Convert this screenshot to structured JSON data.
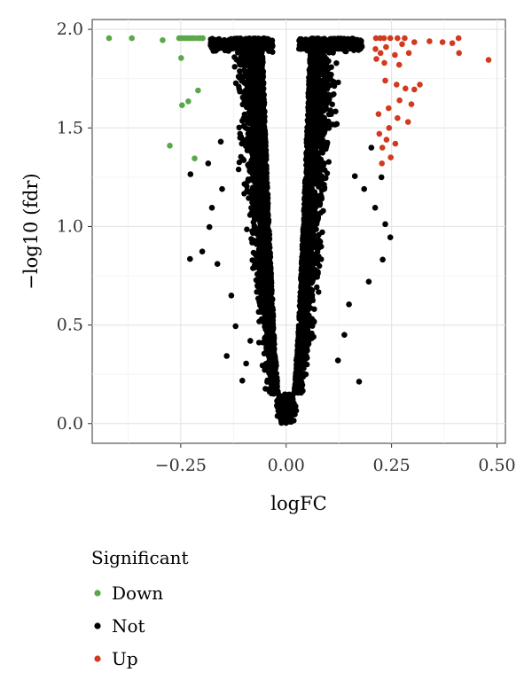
{
  "chart_data": {
    "type": "scatter",
    "title": "",
    "xlabel": "logFC",
    "ylabel": "−log10 (fdr)",
    "xlim": [
      -0.46,
      0.52
    ],
    "ylim": [
      -0.1,
      2.05
    ],
    "x_ticks": [
      -0.25,
      0.0,
      0.25,
      0.5
    ],
    "x_tick_labels": [
      "−0.25",
      "0.00",
      "0.25",
      "0.50"
    ],
    "y_ticks": [
      0.0,
      0.5,
      1.0,
      1.5,
      2.0
    ],
    "y_tick_labels": [
      "0.0",
      "0.5",
      "1.0",
      "1.5",
      "2.0"
    ],
    "grid": true,
    "legend": {
      "title": "Significant",
      "placement": "bottom",
      "entries": [
        {
          "name": "Down",
          "color": "#5aa84a"
        },
        {
          "name": "Not",
          "color": "#000000"
        },
        {
          "name": "Up",
          "color": "#d23a1f"
        }
      ]
    },
    "series": [
      {
        "name": "Down",
        "color": "#5aa84a",
        "points": [
          [
            -0.42,
            1.955
          ],
          [
            -0.366,
            1.955
          ],
          [
            -0.293,
            1.945
          ],
          [
            -0.254,
            1.955
          ],
          [
            -0.247,
            1.955
          ],
          [
            -0.24,
            1.955
          ],
          [
            -0.234,
            1.955
          ],
          [
            -0.227,
            1.955
          ],
          [
            -0.22,
            1.955
          ],
          [
            -0.212,
            1.955
          ],
          [
            -0.205,
            1.955
          ],
          [
            -0.198,
            1.955
          ],
          [
            -0.249,
            1.855
          ],
          [
            -0.232,
            1.635
          ],
          [
            -0.209,
            1.69
          ],
          [
            -0.247,
            1.615
          ],
          [
            -0.276,
            1.41
          ],
          [
            -0.217,
            1.345
          ]
        ]
      },
      {
        "name": "Not",
        "color": "#000000",
        "points": [
          [
            -0.227,
            1.265
          ],
          [
            -0.228,
            0.835
          ],
          [
            -0.185,
            1.32
          ],
          [
            -0.199,
            0.873
          ],
          [
            -0.182,
            0.997
          ],
          [
            -0.163,
            0.81
          ],
          [
            -0.141,
            0.343
          ],
          [
            -0.104,
            0.218
          ],
          [
            -0.12,
            0.494
          ],
          [
            -0.095,
            0.305
          ],
          [
            -0.176,
            1.095
          ],
          [
            -0.152,
            1.19
          ],
          [
            -0.13,
            0.65
          ],
          [
            -0.085,
            0.42
          ],
          [
            0.173,
            0.213
          ],
          [
            0.149,
            0.605
          ],
          [
            0.185,
            1.19
          ],
          [
            0.226,
            1.25
          ],
          [
            0.235,
            1.012
          ],
          [
            0.229,
            0.832
          ],
          [
            0.211,
            1.095
          ],
          [
            0.247,
            0.945
          ],
          [
            0.196,
            0.72
          ],
          [
            0.123,
            0.32
          ],
          [
            0.163,
            1.255
          ],
          [
            0.138,
            0.45
          ],
          [
            -0.105,
            1.42
          ],
          [
            -0.062,
            1.62
          ],
          [
            -0.155,
            1.43
          ],
          [
            0.09,
            1.32
          ],
          [
            0.12,
            1.52
          ],
          [
            0.202,
            1.4
          ]
        ]
      },
      {
        "name": "Up",
        "color": "#d23a1f",
        "points": [
          [
            0.213,
            1.955
          ],
          [
            0.223,
            1.955
          ],
          [
            0.232,
            1.955
          ],
          [
            0.247,
            1.955
          ],
          [
            0.264,
            1.955
          ],
          [
            0.281,
            1.955
          ],
          [
            0.304,
            1.935
          ],
          [
            0.34,
            1.94
          ],
          [
            0.371,
            1.935
          ],
          [
            0.394,
            1.93
          ],
          [
            0.409,
            1.955
          ],
          [
            0.212,
            1.9
          ],
          [
            0.224,
            1.88
          ],
          [
            0.237,
            1.91
          ],
          [
            0.258,
            1.87
          ],
          [
            0.275,
            1.925
          ],
          [
            0.291,
            1.88
          ],
          [
            0.214,
            1.85
          ],
          [
            0.233,
            1.83
          ],
          [
            0.268,
            1.82
          ],
          [
            0.41,
            1.88
          ],
          [
            0.48,
            1.845
          ],
          [
            0.235,
            1.74
          ],
          [
            0.262,
            1.72
          ],
          [
            0.283,
            1.7
          ],
          [
            0.304,
            1.695
          ],
          [
            0.317,
            1.72
          ],
          [
            0.219,
            1.57
          ],
          [
            0.243,
            1.6
          ],
          [
            0.269,
            1.64
          ],
          [
            0.297,
            1.62
          ],
          [
            0.221,
            1.47
          ],
          [
            0.244,
            1.5
          ],
          [
            0.264,
            1.55
          ],
          [
            0.289,
            1.53
          ],
          [
            0.228,
            1.4
          ],
          [
            0.238,
            1.44
          ],
          [
            0.259,
            1.42
          ],
          [
            0.227,
            1.32
          ],
          [
            0.248,
            1.35
          ]
        ]
      }
    ]
  }
}
